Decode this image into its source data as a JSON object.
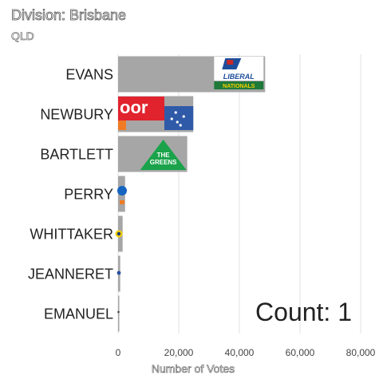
{
  "chart_data": {
    "type": "bar",
    "orientation": "horizontal",
    "title": "Division: Brisbane",
    "subtitle": "QLD",
    "xlabel": "Number of Votes",
    "ylabel": "",
    "xlim": [
      0,
      80000
    ],
    "x_ticks": [
      0,
      20000,
      40000,
      60000,
      80000
    ],
    "x_tick_labels": [
      "0",
      "20,000",
      "40,000",
      "60,000",
      "80,000"
    ],
    "grid": "vertical",
    "categories": [
      "EVANS",
      "NEWBURY",
      "BARTLETT",
      "PERRY",
      "WHITTAKER",
      "JEANNERET",
      "EMANUEL"
    ],
    "values": [
      48500,
      24800,
      22800,
      2300,
      1500,
      700,
      300
    ],
    "bar_color": "#a6a6a6",
    "party_logos": [
      "liberal-nationals",
      "labor",
      "the-greens",
      "",
      "",
      "",
      ""
    ],
    "logo_text": {
      "liberal": "LIBERAL",
      "nationals": "NATIONALS",
      "labor": "oor",
      "greens_line1": "THE",
      "greens_line2": "GREENS"
    },
    "annotation": "Count:  1"
  },
  "colors": {
    "liberal_blue": "#1d4e9c",
    "nationals_green": "#1f7a3a",
    "labor_red": "#e1232e",
    "labor_blue": "#2f5aa8",
    "greens_green": "#1aa34a"
  }
}
